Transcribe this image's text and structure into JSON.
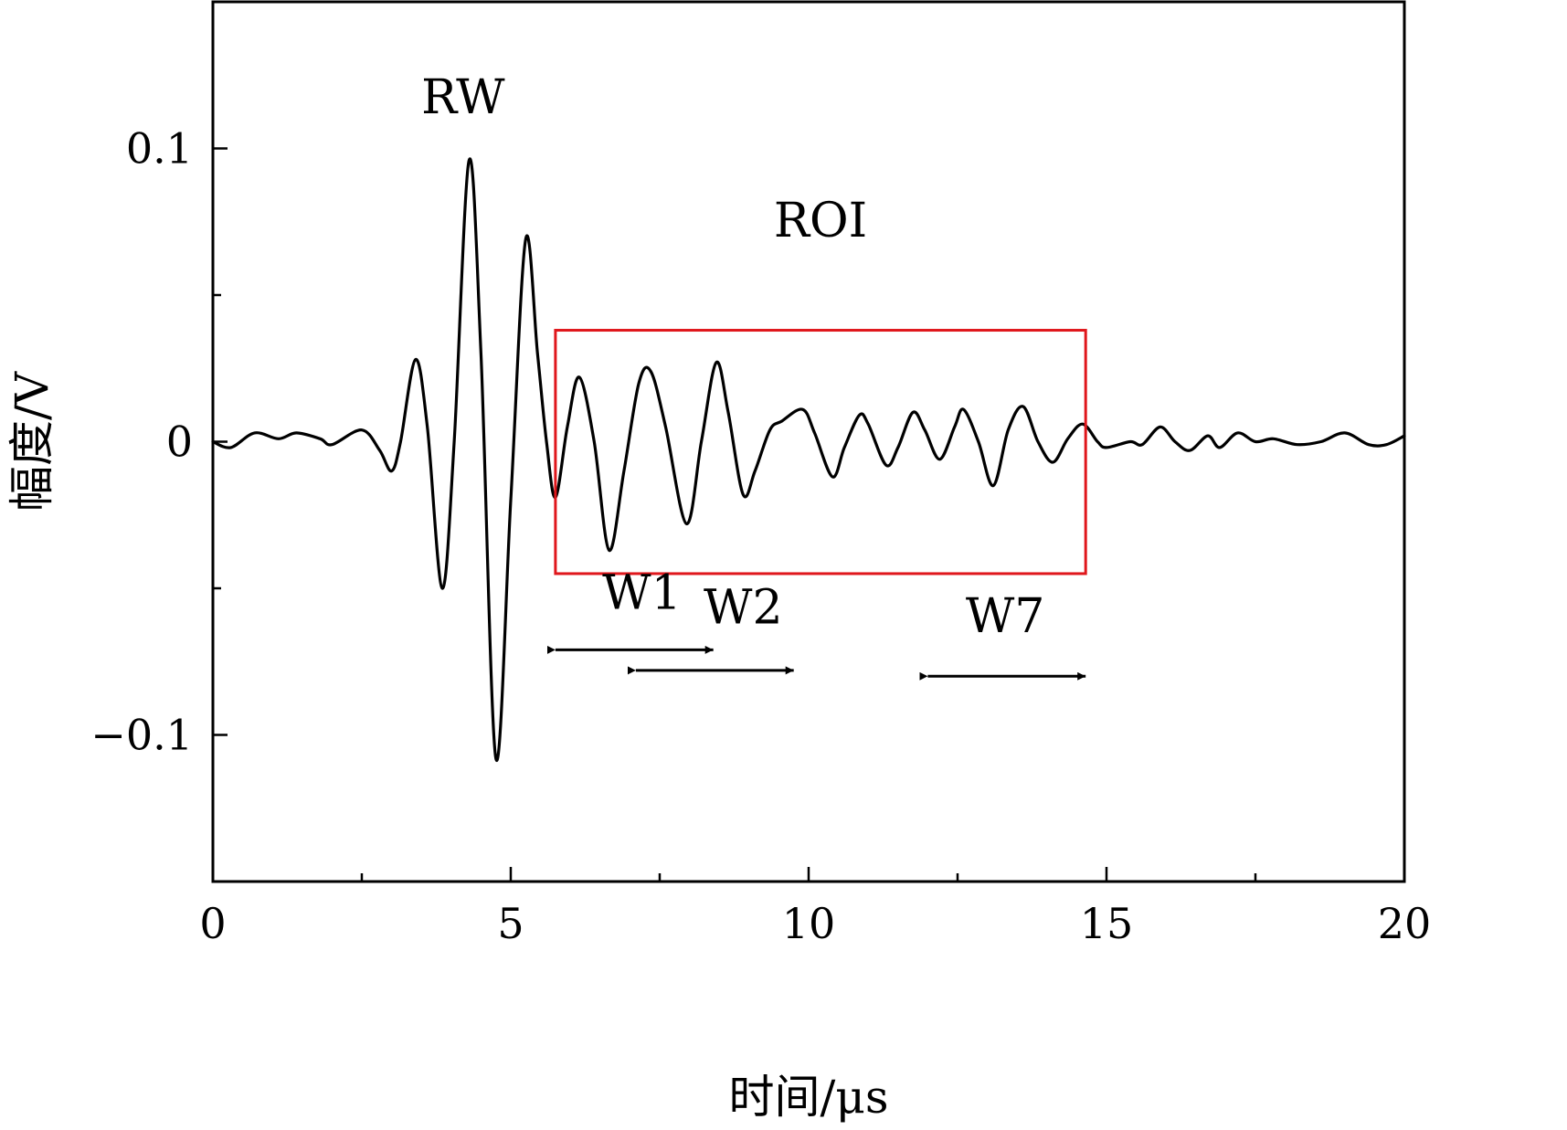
{
  "chart_data": {
    "type": "line",
    "title": "",
    "xlabel": "时间/μs",
    "ylabel": "幅度/V",
    "xlim": [
      0,
      20
    ],
    "ylim": [
      -0.15,
      0.15
    ],
    "x_ticks": [
      0,
      5,
      10,
      15,
      20
    ],
    "x_tick_labels": [
      "0",
      "5",
      "10",
      "15",
      "20"
    ],
    "x_minor_ticks": [
      2.5,
      7.5,
      12.5,
      17.5
    ],
    "y_ticks": [
      0.1,
      0,
      -0.1
    ],
    "y_tick_labels": [
      "0.1",
      "0",
      "−0.1"
    ],
    "y_minor_ticks": [
      0.05,
      -0.05
    ],
    "grid": false,
    "series": [
      {
        "color": "#000000",
        "points": [
          [
            0,
            0
          ],
          [
            0.3,
            -0.002
          ],
          [
            0.7,
            0.003
          ],
          [
            1.1,
            0.001
          ],
          [
            1.4,
            0.003
          ],
          [
            1.8,
            0.001
          ],
          [
            2.0,
            -0.001
          ],
          [
            2.5,
            0.004
          ],
          [
            2.8,
            -0.003
          ],
          [
            3.0,
            -0.01
          ],
          [
            3.15,
            0.0
          ],
          [
            3.4,
            0.028
          ],
          [
            3.6,
            0.005
          ],
          [
            3.85,
            -0.05
          ],
          [
            4.05,
            0.0
          ],
          [
            4.3,
            0.096
          ],
          [
            4.5,
            0.03
          ],
          [
            4.75,
            -0.108
          ],
          [
            5.0,
            -0.02
          ],
          [
            5.25,
            0.069
          ],
          [
            5.45,
            0.03
          ],
          [
            5.6,
            0.0
          ],
          [
            5.75,
            -0.019
          ],
          [
            5.95,
            0.005
          ],
          [
            6.15,
            0.022
          ],
          [
            6.4,
            0.0
          ],
          [
            6.65,
            -0.037
          ],
          [
            6.9,
            -0.01
          ],
          [
            7.15,
            0.02
          ],
          [
            7.35,
            0.024
          ],
          [
            7.6,
            0.005
          ],
          [
            7.95,
            -0.028
          ],
          [
            8.2,
            0.0
          ],
          [
            8.45,
            0.027
          ],
          [
            8.65,
            0.01
          ],
          [
            8.9,
            -0.018
          ],
          [
            9.1,
            -0.01
          ],
          [
            9.35,
            0.004
          ],
          [
            9.55,
            0.007
          ],
          [
            9.9,
            0.011
          ],
          [
            10.1,
            0.003
          ],
          [
            10.4,
            -0.012
          ],
          [
            10.6,
            -0.002
          ],
          [
            10.85,
            0.009
          ],
          [
            11.0,
            0.006
          ],
          [
            11.3,
            -0.008
          ],
          [
            11.5,
            -0.002
          ],
          [
            11.75,
            0.01
          ],
          [
            11.95,
            0.004
          ],
          [
            12.2,
            -0.006
          ],
          [
            12.45,
            0.005
          ],
          [
            12.6,
            0.011
          ],
          [
            12.85,
            0.0
          ],
          [
            13.1,
            -0.015
          ],
          [
            13.35,
            0.004
          ],
          [
            13.6,
            0.012
          ],
          [
            13.85,
            0.0
          ],
          [
            14.1,
            -0.007
          ],
          [
            14.35,
            0.001
          ],
          [
            14.6,
            0.006
          ],
          [
            14.85,
            0.0
          ],
          [
            15.0,
            -0.002
          ],
          [
            15.4,
            0.0
          ],
          [
            15.6,
            -0.001
          ],
          [
            15.9,
            0.005
          ],
          [
            16.15,
            0.0
          ],
          [
            16.4,
            -0.003
          ],
          [
            16.7,
            0.002
          ],
          [
            16.9,
            -0.002
          ],
          [
            17.2,
            0.003
          ],
          [
            17.5,
            0.0
          ],
          [
            17.8,
            0.001
          ],
          [
            18.2,
            -0.001
          ],
          [
            18.6,
            0.0
          ],
          [
            19.0,
            0.003
          ],
          [
            19.4,
            -0.001
          ],
          [
            19.7,
            -0.001
          ],
          [
            20,
            0.002
          ]
        ]
      }
    ],
    "annotations": {
      "rw": {
        "text": "RW",
        "x": 4.2,
        "y": 0.112
      },
      "roi": {
        "text": "ROI",
        "x": 10.2,
        "y": 0.07
      },
      "roi_box": {
        "x0": 5.75,
        "x1": 14.65,
        "y0": -0.045,
        "y1": 0.038,
        "color": "#e0171c"
      },
      "windows": [
        {
          "text": "W1",
          "x0": 5.75,
          "x1": 8.4,
          "y": -0.071,
          "label_x": 7.2,
          "label_y": -0.057
        },
        {
          "text": "W2",
          "x0": 7.1,
          "x1": 9.75,
          "y": -0.078,
          "label_x": 8.9,
          "label_y": -0.062
        },
        {
          "text": "W7",
          "x0": 12.0,
          "x1": 14.65,
          "y": -0.08,
          "label_x": 13.3,
          "label_y": -0.065
        }
      ]
    }
  }
}
